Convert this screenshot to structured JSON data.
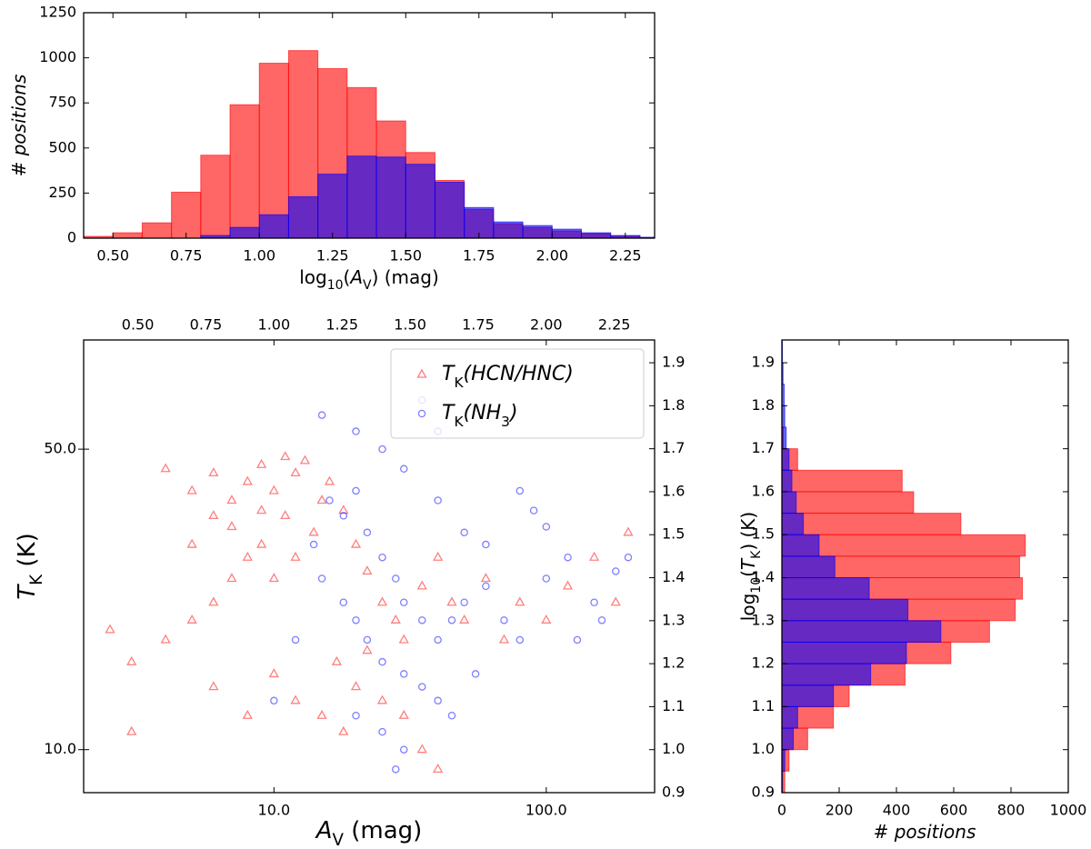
{
  "chart_data": [
    {
      "type": "histogram",
      "orientation": "vertical",
      "xlabel": [
        "log",
        "10",
        "(",
        "A",
        "V",
        ") (mag)"
      ],
      "ylabel": [
        "# positions"
      ],
      "bins": [
        0.4,
        0.5,
        0.6,
        0.7,
        0.8,
        0.9,
        1.0,
        1.1,
        1.2,
        1.3,
        1.4,
        1.5,
        1.6,
        1.7,
        1.8,
        1.9,
        2.0,
        2.1,
        2.2,
        2.3,
        2.4
      ],
      "alpha": 0.6,
      "series": [
        {
          "color": "red",
          "values": [
            10,
            30,
            85,
            255,
            460,
            740,
            970,
            1040,
            940,
            835,
            650,
            475,
            320,
            160,
            80,
            60,
            40,
            25,
            12,
            4
          ]
        },
        {
          "color": "blue",
          "values": [
            0,
            0,
            0,
            0,
            15,
            60,
            130,
            230,
            355,
            455,
            450,
            410,
            310,
            170,
            90,
            70,
            50,
            30,
            15,
            5
          ]
        }
      ],
      "xlim": [
        0.4,
        2.35
      ],
      "xticks": [
        {
          "value": 0.5,
          "label": "0.50"
        },
        {
          "value": 0.75,
          "label": "0.75"
        },
        {
          "value": 1.0,
          "label": "1.00"
        },
        {
          "value": 1.25,
          "label": "1.25"
        },
        {
          "value": 1.5,
          "label": "1.50"
        },
        {
          "value": 1.75,
          "label": "1.75"
        },
        {
          "value": 2.0,
          "label": "2.00"
        },
        {
          "value": 2.25,
          "label": "2.25"
        }
      ],
      "ylim": [
        0,
        1250
      ],
      "yticks": [
        0,
        250,
        500,
        750,
        1000,
        1250
      ]
    },
    {
      "type": "scatter",
      "xlabel": [
        "A",
        "V",
        " (mag)"
      ],
      "ylabel": [
        "T",
        "K",
        " (K)"
      ],
      "log_x": true,
      "log_y": true,
      "alpha": 0.5,
      "legend": "upper right",
      "xlim": [
        2.0,
        250
      ],
      "ylim": [
        7.943,
        89.74
      ],
      "xticks": [
        {
          "value": 10,
          "label": "10.0"
        },
        {
          "value": 100,
          "label": "100.0"
        }
      ],
      "yticks": [
        {
          "value": 10,
          "label": "10.0"
        },
        {
          "value": 50,
          "label": "50.0"
        }
      ],
      "x2lim": [
        0.301,
        2.398
      ],
      "x2ticks": [
        {
          "value": 0.5,
          "label": "0.50"
        },
        {
          "value": 0.75,
          "label": "0.75"
        },
        {
          "value": 1.0,
          "label": "1.00"
        },
        {
          "value": 1.25,
          "label": "1.25"
        },
        {
          "value": 1.5,
          "label": "1.50"
        },
        {
          "value": 1.75,
          "label": "1.75"
        },
        {
          "value": 2.0,
          "label": "2.00"
        },
        {
          "value": 2.25,
          "label": "2.25"
        }
      ],
      "y2lim": [
        0.9,
        1.953
      ],
      "y2ticks": [
        0.9,
        {
          "value": 1.0,
          "label": "1.0"
        },
        1.1,
        1.2,
        1.3,
        1.4,
        1.5,
        1.6,
        1.7,
        1.8,
        1.9
      ],
      "series": [
        {
          "name": [
            "T",
            "K",
            "(HCN/HNC)"
          ],
          "color": "red",
          "marker": "triangle",
          "x": [
            4,
            5,
            6,
            7,
            8,
            9,
            10,
            11,
            12,
            9,
            8,
            7,
            6,
            5,
            4,
            3,
            10,
            12,
            14,
            15,
            16,
            18,
            20,
            22,
            25,
            28,
            30,
            35,
            40,
            45,
            50,
            60,
            70,
            80,
            100,
            120,
            150,
            200,
            180,
            10,
            12,
            15,
            18,
            20,
            25,
            30,
            35,
            40,
            8,
            6,
            3,
            2.5,
            5,
            6,
            11,
            13,
            9,
            7,
            17,
            22
          ],
          "values": [
            45,
            40,
            44,
            38,
            42,
            46,
            40,
            35,
            44,
            30,
            28,
            25,
            22,
            20,
            18,
            16,
            25,
            28,
            32,
            38,
            42,
            36,
            30,
            26,
            22,
            20,
            18,
            24,
            28,
            22,
            20,
            25,
            18,
            22,
            20,
            24,
            28,
            32,
            22,
            15,
            13,
            12,
            11,
            14,
            13,
            12,
            10,
            9,
            12,
            14,
            11,
            19,
            30,
            35,
            48,
            47,
            36,
            33,
            16,
            17
          ]
        },
        {
          "name": [
            "T",
            "K",
            "(NH",
            "3",
            ")"
          ],
          "color": "blue",
          "marker": "circle",
          "x": [
            15,
            20,
            25,
            30,
            20,
            18,
            22,
            25,
            28,
            30,
            35,
            40,
            45,
            50,
            60,
            70,
            80,
            100,
            120,
            150,
            180,
            200,
            15,
            18,
            20,
            22,
            25,
            30,
            35,
            40,
            20,
            25,
            30,
            28,
            12,
            14,
            16,
            40,
            50,
            60,
            80,
            90,
            100,
            130,
            160,
            35,
            40,
            10,
            45,
            55
          ],
          "values": [
            60,
            55,
            50,
            45,
            40,
            35,
            32,
            28,
            25,
            22,
            20,
            18,
            20,
            22,
            24,
            20,
            18,
            25,
            28,
            22,
            26,
            28,
            25,
            22,
            20,
            18,
            16,
            15,
            14,
            13,
            12,
            11,
            10,
            9,
            18,
            30,
            38,
            38,
            32,
            30,
            40,
            36,
            33,
            18,
            20,
            65,
            55,
            13,
            12,
            15
          ]
        }
      ]
    },
    {
      "type": "histogram",
      "orientation": "horizontal",
      "xlabel": [
        "# positions"
      ],
      "ylabel": [
        "log",
        "10",
        "(",
        "T",
        "K",
        ") (K)"
      ],
      "bins": [
        0.9,
        0.95,
        1.0,
        1.05,
        1.1,
        1.15,
        1.2,
        1.25,
        1.3,
        1.35,
        1.4,
        1.45,
        1.5,
        1.55,
        1.6,
        1.65,
        1.7,
        1.75,
        1.8,
        1.85,
        1.9,
        1.95
      ],
      "alpha": 0.6,
      "series": [
        {
          "color": "red",
          "values": [
            10,
            25,
            90,
            180,
            235,
            430,
            590,
            725,
            815,
            840,
            830,
            850,
            625,
            460,
            420,
            55,
            5,
            0,
            0,
            0,
            0
          ]
        },
        {
          "color": "blue",
          "values": [
            2,
            10,
            40,
            55,
            180,
            310,
            435,
            555,
            440,
            305,
            185,
            130,
            75,
            50,
            35,
            25,
            15,
            10,
            8,
            4,
            2
          ]
        }
      ],
      "xlim": [
        0,
        1000
      ],
      "xticks": [
        0,
        200,
        400,
        600,
        800,
        1000
      ],
      "ylim": [
        0.9,
        1.953
      ],
      "yticks": [
        0.9,
        {
          "value": 1.0,
          "label": "1.0"
        },
        1.1,
        1.2,
        1.3,
        1.4,
        1.5,
        1.6,
        1.7,
        1.8,
        1.9
      ]
    }
  ]
}
